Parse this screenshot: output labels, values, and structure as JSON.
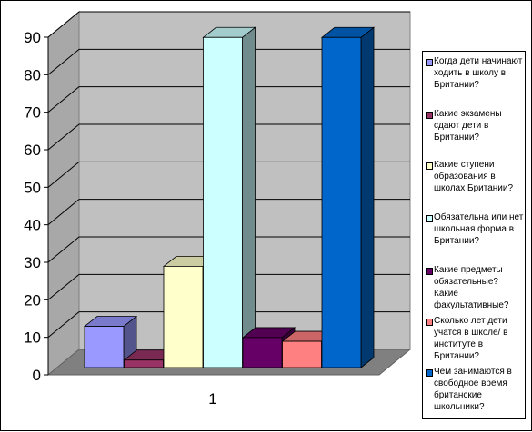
{
  "chart_data": {
    "type": "bar",
    "title": "",
    "xlabel": "",
    "ylabel": "",
    "categories": [
      "1"
    ],
    "ylim": [
      0,
      90
    ],
    "yticks": [
      "0",
      "10",
      "20",
      "30",
      "40",
      "50",
      "60",
      "70",
      "80",
      "90"
    ],
    "grid": true,
    "three_d": true,
    "legend_position": "right",
    "series": [
      {
        "name": "Когда дети начинают ходить в школу в Британии?",
        "values": [
          11
        ],
        "color": "#9999ff"
      },
      {
        "name": "Какие экзамены сдают дети в Британии?",
        "values": [
          2
        ],
        "color": "#993366"
      },
      {
        "name": "Какие ступени образования в школах Британии?",
        "values": [
          27
        ],
        "color": "#ffffcc"
      },
      {
        "name": "Обязательна или нет школьная форма в Британии?",
        "values": [
          88
        ],
        "color": "#ccffff"
      },
      {
        "name": "Какие предметы обязательные? Какие факультативные?",
        "values": [
          8
        ],
        "color": "#660066"
      },
      {
        "name": "Сколько лет дети учатся в школе/ в институте в Британии?",
        "values": [
          7
        ],
        "color": "#ff8080"
      },
      {
        "name": "Чем занимаются в свободное время британские школьники?",
        "values": [
          88
        ],
        "color": "#0066cc"
      }
    ]
  }
}
